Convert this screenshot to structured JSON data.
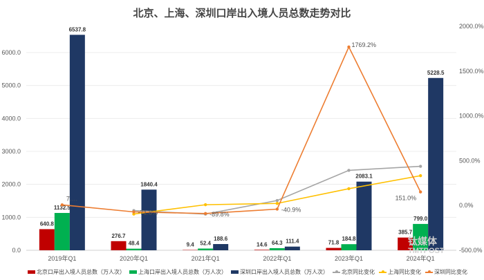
{
  "chart_data": {
    "type": "bar",
    "title": "北京、上海、深圳口岸出入境人员总数走势对比",
    "categories": [
      "2019年Q1",
      "2020年Q1",
      "2021年Q1",
      "2022年Q1",
      "2023年Q1",
      "2024年Q1"
    ],
    "left_axis": {
      "range": [
        0,
        6000
      ],
      "ticks": [
        "0.0",
        "1000.0",
        "2000.0",
        "3000.0",
        "4000.0",
        "5000.0",
        "6000.0"
      ]
    },
    "right_axis": {
      "range": [
        -500,
        2000
      ],
      "ticks": [
        "-500.0%",
        "0.0%",
        "500.0%",
        "1000.0%",
        "1500.0%",
        "2000.0%"
      ]
    },
    "grid": true,
    "legend_placement": "bottom",
    "bar_series": [
      {
        "name": "北京口岸出入境人员总数（万人次）",
        "color": "#c00000",
        "values": [
          640.8,
          276.7,
          9.4,
          14.6,
          71.8,
          385.7
        ],
        "labels": [
          "640.8",
          "276.7",
          "9.4",
          "14.6",
          "71.8",
          "385.7"
        ]
      },
      {
        "name": "上海口岸出入境人员总数（万人次）",
        "color": "#00b050",
        "values": [
          1132.5,
          48.4,
          52.4,
          64.3,
          184.8,
          799.0
        ],
        "labels": [
          "1132.5",
          "48.4",
          "52.4",
          "64.3",
          "184.8",
          "799.0"
        ]
      },
      {
        "name": "深圳口岸出入境人员总数（万人次）",
        "color": "#1f3864",
        "values": [
          6537.8,
          1840.4,
          188.6,
          111.4,
          2083.1,
          5228.5
        ],
        "labels": [
          "6537.8",
          "1840.4",
          "188.6",
          "111.4",
          "2083.1",
          "5228.5"
        ]
      }
    ],
    "line_series": [
      {
        "name": "北京同比变化",
        "color": "#a5a5a5",
        "values": [
          null,
          -56.8,
          -96.6,
          55.3,
          391.8,
          437.2
        ]
      },
      {
        "name": "上海同比变化",
        "color": "#ffc000",
        "values": [
          null,
          -95.7,
          8.3,
          22.7,
          187.4,
          332.4
        ]
      },
      {
        "name": "深圳同比变化",
        "color": "#ed7d31",
        "values": [
          7.0,
          -71.8,
          -89.8,
          -40.9,
          1769.2,
          151.0
        ],
        "labels": [
          "7.…",
          "-71.8%",
          "-89.8%",
          "-40.9%",
          "1769.2%",
          "151.0%"
        ]
      }
    ]
  },
  "watermark": {
    "line1": "钛媒体",
    "line2": "TMTPOST"
  }
}
